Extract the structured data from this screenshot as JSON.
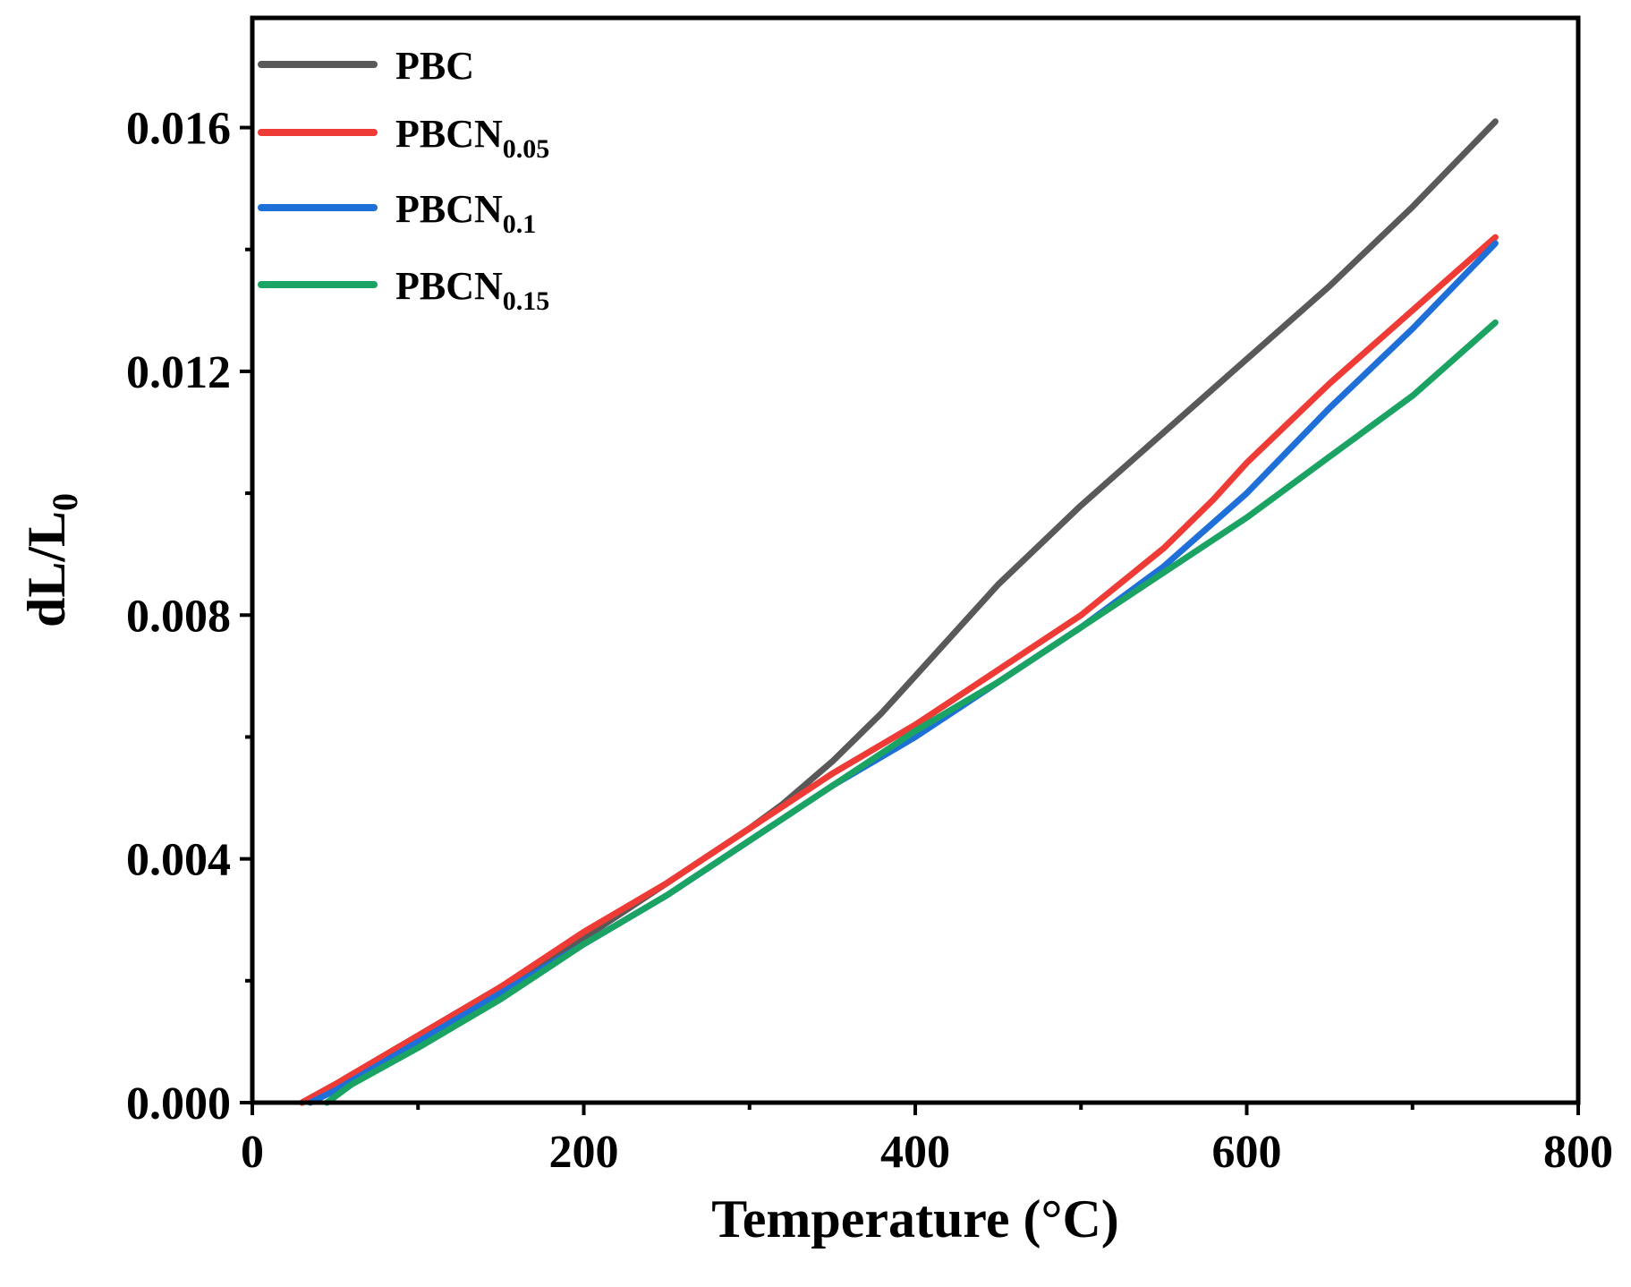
{
  "chart_data": {
    "type": "line",
    "xlabel": "Temperature (°C)",
    "ylabel_main": "dL/L",
    "ylabel_sub": "0",
    "xlim": [
      0,
      800
    ],
    "ylim": [
      0,
      0.0178
    ],
    "x_ticks": [
      0,
      200,
      400,
      600,
      800
    ],
    "x_tick_labels": [
      "0",
      "200",
      "400",
      "600",
      "800"
    ],
    "x_minor_ticks": [
      100,
      300,
      500,
      700
    ],
    "y_ticks": [
      0,
      0.004,
      0.008,
      0.012,
      0.016
    ],
    "y_tick_labels": [
      "0.000",
      "0.004",
      "0.008",
      "0.012",
      "0.016"
    ],
    "y_minor_ticks": [
      0.002,
      0.006,
      0.01,
      0.014
    ],
    "grid": false,
    "legend_position": "top-left",
    "series": [
      {
        "name": "PBC",
        "label_main": "PBC",
        "label_sub": "",
        "color": "#595959",
        "x": [
          30,
          50,
          100,
          150,
          200,
          250,
          300,
          320,
          350,
          380,
          400,
          450,
          500,
          550,
          600,
          650,
          700,
          750
        ],
        "y": [
          0.0,
          0.0003,
          0.0011,
          0.0019,
          0.0027,
          0.0036,
          0.0045,
          0.0049,
          0.0056,
          0.0064,
          0.007,
          0.0085,
          0.0098,
          0.011,
          0.0122,
          0.0134,
          0.0147,
          0.0161
        ]
      },
      {
        "name": "PBCN0.05",
        "label_main": "PBCN",
        "label_sub": "0.05",
        "color": "#ef3b36",
        "x": [
          30,
          50,
          100,
          150,
          200,
          250,
          300,
          350,
          400,
          450,
          500,
          550,
          580,
          600,
          650,
          700,
          750
        ],
        "y": [
          0.0,
          0.0003,
          0.0011,
          0.0019,
          0.0028,
          0.0036,
          0.0045,
          0.0054,
          0.0062,
          0.0071,
          0.008,
          0.0091,
          0.0099,
          0.0105,
          0.0118,
          0.013,
          0.0142
        ]
      },
      {
        "name": "PBCN0.1",
        "label_main": "PBCN",
        "label_sub": "0.1",
        "color": "#1f6fd8",
        "x": [
          35,
          50,
          100,
          150,
          200,
          250,
          300,
          350,
          400,
          450,
          500,
          550,
          600,
          650,
          700,
          750
        ],
        "y": [
          0.0,
          0.0002,
          0.001,
          0.0018,
          0.0026,
          0.0034,
          0.0043,
          0.0052,
          0.006,
          0.0069,
          0.0078,
          0.0088,
          0.01,
          0.0114,
          0.0127,
          0.0141
        ]
      },
      {
        "name": "PBCN0.15",
        "label_main": "PBCN",
        "label_sub": "0.15",
        "color": "#1aa363",
        "x": [
          45,
          60,
          100,
          150,
          200,
          250,
          300,
          350,
          400,
          450,
          500,
          550,
          600,
          650,
          700,
          750
        ],
        "y": [
          0.0,
          0.0003,
          0.0009,
          0.0017,
          0.0026,
          0.0034,
          0.0043,
          0.0052,
          0.0061,
          0.0069,
          0.0078,
          0.0087,
          0.0096,
          0.0106,
          0.0116,
          0.0128
        ]
      }
    ]
  }
}
